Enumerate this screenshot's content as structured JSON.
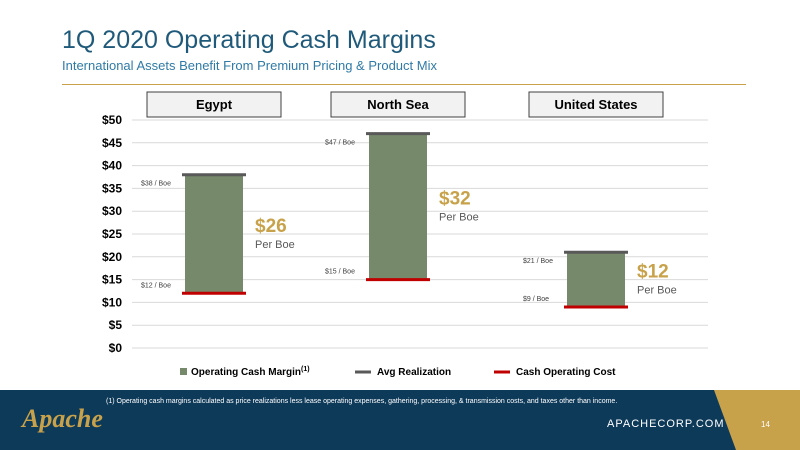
{
  "title": "1Q 2020 Operating Cash Margins",
  "subtitle": "International Assets Benefit From Premium Pricing & Product Mix",
  "footer": {
    "footnote": "(1)   Operating cash margins calculated as price realizations less lease operating expenses, gathering, processing, & transmission costs, and taxes other than income.",
    "logo": "Apache",
    "website": "APACHECORP.COM",
    "page_number": "14"
  },
  "colors": {
    "margin_bar": "#76896b",
    "avg_realization": "#595959",
    "cash_cost": "#c00000",
    "highlight_gold": "#c8a24a",
    "title_blue": "#1f5a7a"
  },
  "chart_data": {
    "type": "bar",
    "categories": [
      "Egypt",
      "North Sea",
      "United States"
    ],
    "ylim": [
      0,
      50
    ],
    "y_ticks": [
      "$0",
      "$5",
      "$10",
      "$15",
      "$20",
      "$25",
      "$30",
      "$35",
      "$40",
      "$45",
      "$50"
    ],
    "y_tick_values": [
      0,
      5,
      10,
      15,
      20,
      25,
      30,
      35,
      40,
      45,
      50
    ],
    "grid": true,
    "series": [
      {
        "name": "Operating Cash Margin",
        "values": [
          26,
          32,
          12
        ]
      },
      {
        "name": "Avg Realization",
        "values": [
          38,
          47,
          21
        ]
      },
      {
        "name": "Cash Operating Cost",
        "values": [
          12,
          15,
          9
        ]
      }
    ],
    "realization_labels": [
      "$38 / Boe",
      "$47 / Boe",
      "$21 / Boe"
    ],
    "cost_labels": [
      "$12 / Boe",
      "$15 / Boe",
      "$9 / Boe"
    ],
    "margin_labels": [
      "$26",
      "$32",
      "$12"
    ],
    "margin_unit": "Per Boe",
    "legend": {
      "placement": "bottom",
      "items": [
        "Operating Cash Margin",
        "Avg Realization",
        "Cash Operating Cost"
      ],
      "margin_superscript": "(1)"
    }
  }
}
